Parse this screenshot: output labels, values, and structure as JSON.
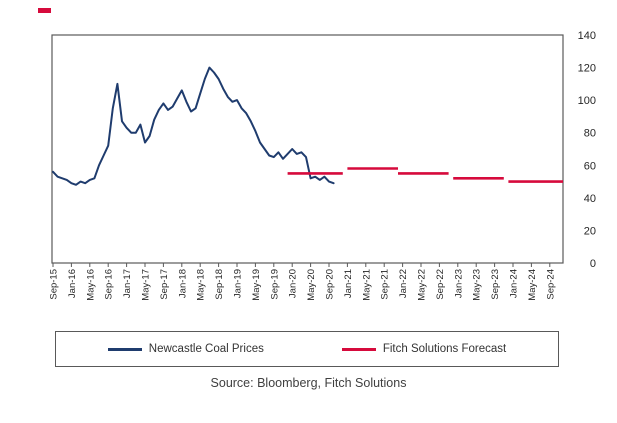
{
  "colors": {
    "historical": "#1f3c6e",
    "forecast": "#d60a3c",
    "axis": "#595959",
    "tick_text": "#262626",
    "legend_text": "#333333"
  },
  "top_left_marker": {
    "present": true,
    "color": "#d60a3c"
  },
  "chart_data": {
    "type": "line",
    "title": "",
    "xlabel": "",
    "ylabel": "",
    "grid": false,
    "legend_position": "bottom",
    "y_axis": {
      "min": 0,
      "max": 140,
      "step": 20,
      "tick_labels": [
        "0",
        "20",
        "40",
        "60",
        "80",
        "100",
        "120",
        "140"
      ],
      "side": "right"
    },
    "x_axis": {
      "months_per_tick": 4,
      "tick_labels": [
        "Sep-15",
        "Jan-16",
        "May-16",
        "Sep-16",
        "Jan-17",
        "May-17",
        "Sep-17",
        "Jan-18",
        "May-18",
        "Sep-18",
        "Jan-19",
        "May-19",
        "Sep-19",
        "Jan-20",
        "May-20",
        "Sep-20",
        "Jan-21",
        "May-21",
        "Sep-21",
        "Jan-22",
        "May-22",
        "Sep-22",
        "Jan-23",
        "May-23",
        "Sep-23",
        "Jan-24",
        "May-24",
        "Sep-24"
      ]
    },
    "series": [
      {
        "name": "Newcastle Coal Prices",
        "color": "#1f3c6e",
        "frequency": "monthly",
        "start": "Sep-15",
        "end": "Oct-20",
        "values": [
          56,
          53,
          52,
          51,
          49,
          48,
          50,
          49,
          51,
          52,
          60,
          66,
          72,
          95,
          110,
          87,
          83,
          80,
          80,
          85,
          74,
          78,
          88,
          94,
          98,
          94,
          96,
          101,
          106,
          99,
          93,
          95,
          104,
          113,
          120,
          117,
          113,
          107,
          102,
          99,
          100,
          95,
          92,
          87,
          81,
          74,
          70,
          66,
          65,
          68,
          64,
          67,
          70,
          67,
          68,
          65,
          52,
          53,
          51,
          53,
          50,
          49
        ]
      },
      {
        "name": "Fitch Solutions Forecast",
        "color": "#d60a3c",
        "style": "stepped-annual-average",
        "segments": [
          {
            "start": "Dec-19",
            "end": "Nov-20",
            "value": 55
          },
          {
            "start": "Jan-21",
            "end": "Nov-21",
            "value": 58
          },
          {
            "start": "Dec-21",
            "end": "Oct-22",
            "value": 55
          },
          {
            "start": "Dec-22",
            "end": "Oct-23",
            "value": 52
          },
          {
            "start": "Dec-23",
            "end": "Dec-24",
            "value": 50
          }
        ]
      }
    ]
  },
  "legend": {
    "items": [
      {
        "label": "Newcastle Coal Prices",
        "color": "#1f3c6e"
      },
      {
        "label": "Fitch Solutions Forecast",
        "color": "#d60a3c"
      }
    ]
  },
  "source_text": "Source: Bloomberg, Fitch Solutions"
}
